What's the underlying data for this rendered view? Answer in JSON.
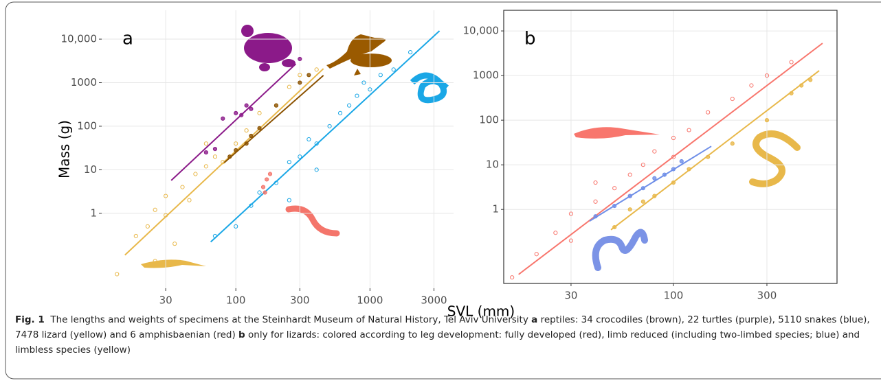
{
  "chart_data": [
    {
      "type": "scatter",
      "label": "a",
      "xlabel": "SVL (mm)",
      "ylabel": "Mass (g)",
      "xscale": "log",
      "yscale": "log",
      "grid": true,
      "frame": false,
      "xlim": [
        10,
        4200
      ],
      "ylim": [
        0.019,
        46000
      ],
      "xticks": [
        30,
        100,
        300,
        1000,
        3000
      ],
      "yticks": [
        1,
        10,
        100,
        1000,
        {
          "value": 10000,
          "label": "10,000"
        }
      ],
      "series": [
        {
          "color": "#e8b84a",
          "filled": false,
          "x": [
            13,
            18,
            22,
            25,
            30,
            30,
            40,
            45,
            50,
            60,
            70,
            80,
            100,
            120,
            150,
            200,
            250,
            300,
            400,
            25,
            35,
            60
          ],
          "y": [
            0.04,
            0.3,
            0.5,
            1.2,
            0.9,
            2.5,
            4,
            2,
            8,
            12,
            20,
            15,
            40,
            80,
            200,
            300,
            800,
            1500,
            2000,
            0.08,
            0.2,
            40
          ],
          "fit": {
            "x": [
              14.9,
              450
            ],
            "y": [
              0.11,
              2100
            ]
          }
        },
        {
          "color": "#1aa7e6",
          "filled": false,
          "x": [
            70,
            100,
            130,
            150,
            200,
            250,
            300,
            350,
            400,
            500,
            600,
            700,
            800,
            1000,
            1200,
            1500,
            250,
            400,
            900,
            2000
          ],
          "y": [
            0.3,
            0.5,
            1.5,
            3,
            5,
            15,
            20,
            50,
            40,
            100,
            200,
            300,
            500,
            700,
            1500,
            2000,
            2,
            10,
            1000,
            5000
          ],
          "fit": {
            "x": [
              65,
              3300
            ],
            "y": [
              0.22,
              15500
            ]
          }
        },
        {
          "color": "#8b1a89",
          "filled": true,
          "x": [
            100,
            120,
            130,
            70,
            80,
            300,
            110,
            60
          ],
          "y": [
            200,
            300,
            250,
            30,
            150,
            3500,
            180,
            25
          ],
          "fit": {
            "x": [
              33,
              280
            ],
            "y": [
              5.7,
              2700
            ]
          }
        },
        {
          "color": "#8b5200",
          "filled": true,
          "x": [
            90,
            100,
            120,
            130,
            150,
            200,
            300,
            350
          ],
          "y": [
            20,
            28,
            40,
            60,
            90,
            300,
            1000,
            1500
          ],
          "fit": {
            "x": [
              82,
              450
            ],
            "y": [
              14.6,
              1470
            ]
          }
        },
        {
          "color": "#f4756b",
          "filled": true,
          "x": [
            160,
            170,
            180,
            165
          ],
          "y": [
            4,
            6,
            8,
            3
          ]
        }
      ]
    },
    {
      "type": "scatter",
      "label": "b",
      "xscale": "log",
      "yscale": "log",
      "grid": true,
      "frame": true,
      "xlim": [
        13.6,
        684
      ],
      "ylim": [
        0.022,
        29000
      ],
      "xticks": [
        30,
        100,
        300
      ],
      "yticks": [
        1,
        10,
        100,
        1000,
        {
          "value": 10000,
          "label": "10,000"
        }
      ],
      "series": [
        {
          "color": "#f8766d",
          "filled": false,
          "x": [
            15,
            20,
            25,
            30,
            30,
            40,
            50,
            60,
            70,
            80,
            100,
            120,
            150,
            200,
            250,
            300,
            400,
            40,
            60,
            100
          ],
          "y": [
            0.03,
            0.1,
            0.3,
            0.8,
            0.2,
            1.5,
            3,
            6,
            10,
            20,
            40,
            60,
            150,
            300,
            600,
            1000,
            2000,
            4,
            2,
            15
          ],
          "fit": {
            "x": [
              16.2,
              577
            ],
            "y": [
              0.035,
              5300
            ]
          }
        },
        {
          "color": "#6f8fe8",
          "filled": true,
          "x": [
            40,
            50,
            60,
            70,
            80,
            90,
            100,
            110
          ],
          "y": [
            0.7,
            1.2,
            2,
            3,
            5,
            6,
            8,
            12
          ],
          "fit": {
            "x": [
              37.3,
              156
            ],
            "y": [
              0.55,
              26
            ]
          }
        },
        {
          "color": "#e8b84a",
          "filled": true,
          "x": [
            50,
            60,
            70,
            80,
            100,
            120,
            150,
            200,
            300,
            400,
            450,
            500
          ],
          "y": [
            0.4,
            1,
            1.5,
            2,
            4,
            8,
            15,
            30,
            100,
            400,
            600,
            800
          ],
          "fit": {
            "x": [
              48,
              555
            ],
            "y": [
              0.35,
              1290
            ]
          }
        }
      ]
    }
  ],
  "caption": {
    "figure": "Fig. 1",
    "title": "The lengths and weights of specimens at the Steinhardt Museum of Natural History, Tel Aviv University",
    "a_label": "a",
    "a_text": "reptiles: 34 crocodiles (brown), 22 turtles (purple), 5110 snakes (blue), 7478 lizard (yellow) and 6 amphisbaenian (red)",
    "b_label": "b",
    "b_text": "only for lizards: colored according to leg development: fully developed (red), limb reduced (including two-limbed species; blue) and limbless species (yellow)"
  }
}
